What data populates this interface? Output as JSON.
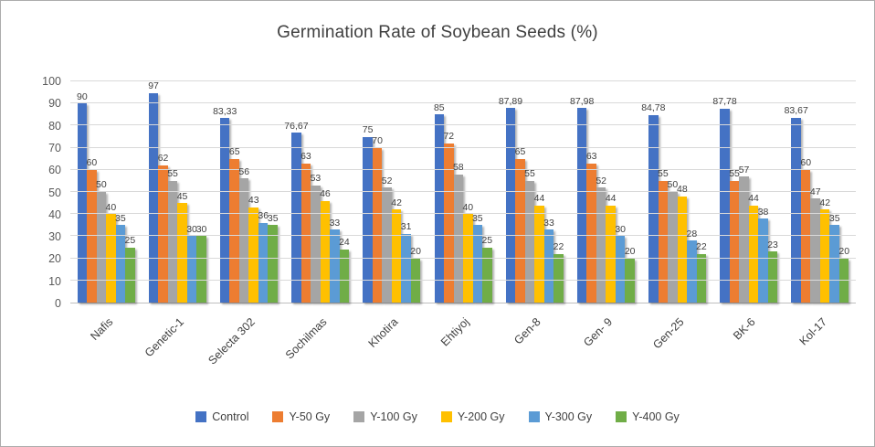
{
  "chart_data": {
    "type": "bar",
    "title": "Germination Rate of Soybean Seeds (%)",
    "categories": [
      "Nafis",
      "Genetic-1",
      "Selecta 302",
      "Sochilmas",
      "Khotira",
      "Ehtiyoj",
      "Gen-8",
      "Gen- 9",
      "Gen-25",
      "BK-6",
      "Kol-17"
    ],
    "series": [
      {
        "name": "Control",
        "color": "#4472C4",
        "values": [
          90,
          97,
          83.33,
          76.67,
          75,
          85,
          87.89,
          87.98,
          84.78,
          87.78,
          83.67
        ],
        "labels": [
          "90",
          "97",
          "83,33",
          "76,67",
          "75",
          "85",
          "87,89",
          "87,98",
          "84,78",
          "87,78",
          "83,67"
        ]
      },
      {
        "name": "Y-50 Gy",
        "color": "#ED7D31",
        "values": [
          60,
          62,
          65,
          63,
          70,
          72,
          65,
          63,
          55,
          55,
          60
        ]
      },
      {
        "name": "Y-100 Gy",
        "color": "#A5A5A5",
        "values": [
          50,
          55,
          56,
          53,
          52,
          58,
          55,
          52,
          50,
          57,
          47
        ]
      },
      {
        "name": "Y-200 Gy",
        "color": "#FFC000",
        "values": [
          40,
          45,
          43,
          46,
          42,
          40,
          44,
          44,
          48,
          44,
          42
        ]
      },
      {
        "name": "Y-300 Gy",
        "color": "#5B9BD5",
        "values": [
          35,
          30,
          36,
          33,
          31,
          35,
          33,
          30,
          28,
          38,
          35
        ]
      },
      {
        "name": "Y-400 Gy",
        "color": "#70AD47",
        "values": [
          25,
          30,
          35,
          24,
          20,
          25,
          22,
          20,
          22,
          23,
          20
        ]
      }
    ],
    "y_axis": {
      "min": 0,
      "max": 100,
      "step": 10,
      "ticks": [
        "0",
        "10",
        "20",
        "30",
        "40",
        "50",
        "60",
        "70",
        "80",
        "90",
        "100"
      ]
    },
    "grid": true,
    "legend_position": "bottom",
    "gridline_color": "#D9D9D9",
    "axis_line_color": "#BFBFBF",
    "title_color": "#404040",
    "axis_text_color": "#595959"
  }
}
